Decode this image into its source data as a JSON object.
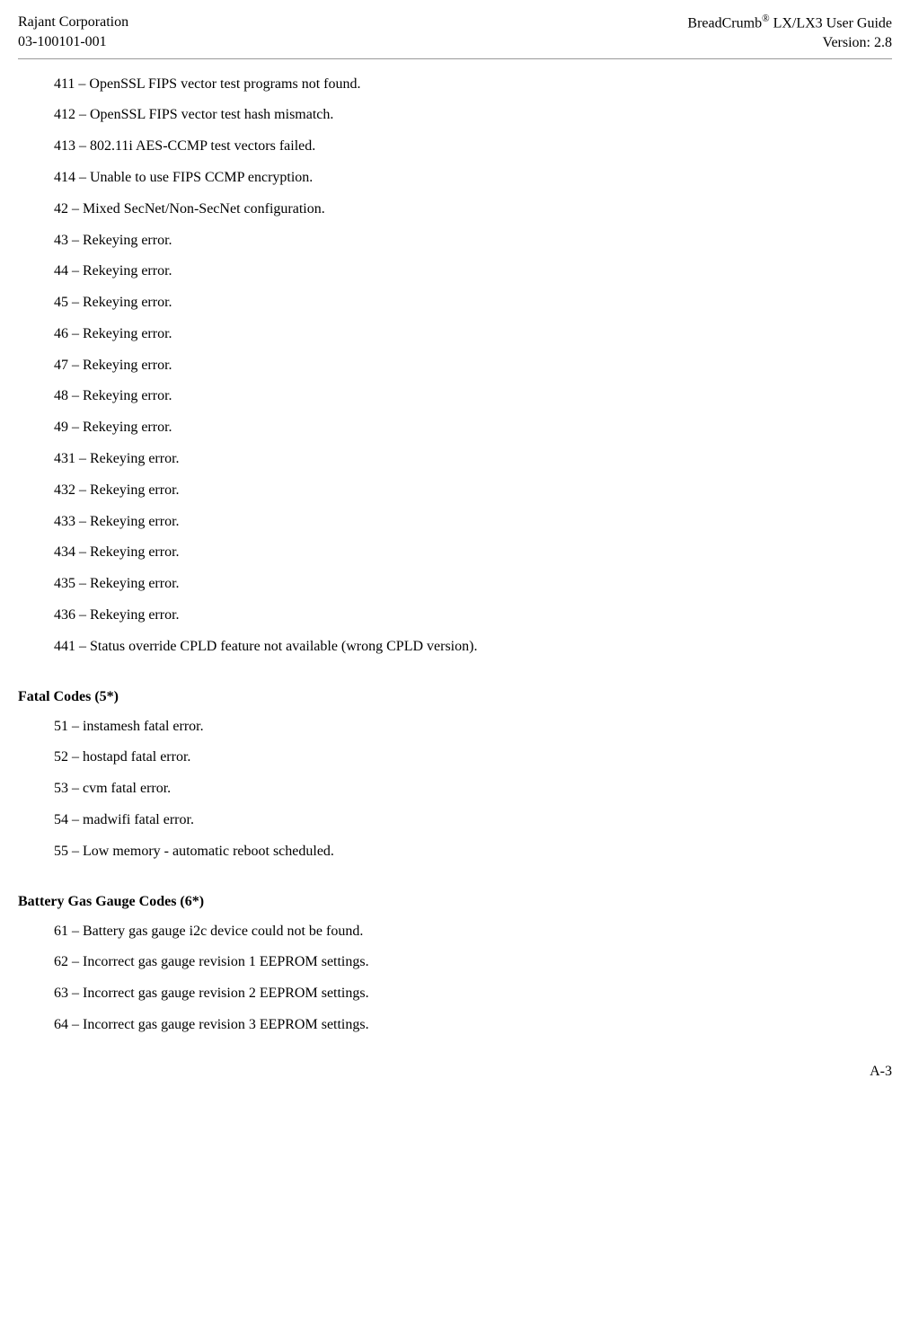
{
  "header": {
    "left_line1": "Rajant Corporation",
    "left_line2": "03-100101-001",
    "right_line1_pre": "BreadCrumb",
    "right_line1_sup": "®",
    "right_line1_post": " LX/LX3 User Guide",
    "right_line2": "Version:  2.8"
  },
  "error_codes": [
    "411 – OpenSSL FIPS vector test programs not found.",
    "412 – OpenSSL FIPS vector test hash mismatch.",
    "413 – 802.11i AES-CCMP test vectors failed.",
    "414 – Unable to use FIPS CCMP encryption.",
    "42 – Mixed SecNet/Non-SecNet configuration.",
    "43 – Rekeying error.",
    "44 – Rekeying error.",
    "45 – Rekeying error.",
    "46 – Rekeying error.",
    "47 – Rekeying error.",
    "48 – Rekeying error.",
    "49 – Rekeying error.",
    "431 – Rekeying error.",
    "432 – Rekeying error.",
    "433 – Rekeying error.",
    "434 – Rekeying error.",
    "435 – Rekeying error.",
    "436 – Rekeying error.",
    "441 – Status override CPLD feature not available (wrong CPLD version)."
  ],
  "fatal_heading": "Fatal Codes (5*)",
  "fatal_codes": [
    "51 – instamesh fatal error.",
    "52 – hostapd fatal error.",
    "53 – cvm fatal error.",
    "54 – madwifi fatal error.",
    "55 – Low memory - automatic reboot scheduled."
  ],
  "battery_heading": "Battery Gas Gauge Codes (6*)",
  "battery_codes": [
    "61 – Battery gas gauge i2c device could not be found.",
    "62 – Incorrect gas gauge revision 1 EEPROM settings.",
    "63 – Incorrect gas gauge revision 2 EEPROM settings.",
    "64 – Incorrect gas gauge revision 3 EEPROM settings."
  ],
  "page_number": "A-3"
}
